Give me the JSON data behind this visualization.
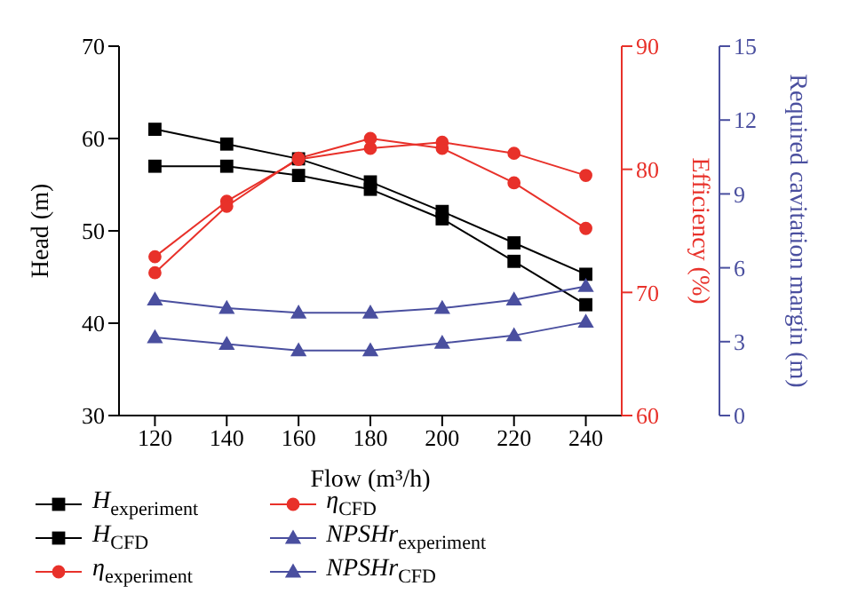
{
  "chart_data": {
    "type": "line",
    "xlabel": "Flow (m³/h)",
    "ylabel": "Head (m)",
    "y2label": "Efficiency (%)",
    "y3label": "Required cavitation margin (m)",
    "x": [
      120,
      140,
      160,
      180,
      200,
      220,
      240
    ],
    "xlim": [
      110,
      250
    ],
    "xticks": [
      120,
      140,
      160,
      180,
      200,
      220,
      240
    ],
    "ylim": [
      30,
      70
    ],
    "yticks": [
      30,
      40,
      50,
      60,
      70
    ],
    "y2lim": [
      60,
      90
    ],
    "y2ticks": [
      60,
      70,
      80,
      90
    ],
    "y3lim": [
      0,
      15
    ],
    "y3ticks": [
      0,
      3,
      6,
      9,
      12,
      15
    ],
    "grid": false,
    "legend": "bottom",
    "series": [
      {
        "name": "H$_{experiment}$",
        "color": "#000000",
        "marker": "square",
        "values": [
          61.0,
          59.4,
          57.8,
          55.3,
          52.1,
          48.7,
          45.3
        ]
      },
      {
        "name": "H$_{CFD}$",
        "color": "#000000",
        "marker": "square",
        "values": [
          57.0,
          57.0,
          56.0,
          54.5,
          51.3,
          46.7,
          42.0
        ]
      },
      {
        "name": "η$_{experiment}$",
        "color": "#e8312a",
        "marker": "circle",
        "axis": "y2",
        "values": [
          72.9,
          77.4,
          80.8,
          81.7,
          82.2,
          81.3,
          79.5
        ]
      },
      {
        "name": "η$_{CFD}$",
        "color": "#e8312a",
        "marker": "circle",
        "axis": "y2",
        "values": [
          71.6,
          77.0,
          80.9,
          82.5,
          81.7,
          78.9,
          75.2
        ]
      },
      {
        "name": "NPSHr$_{experiment}$",
        "color": "#4a4f9f",
        "marker": "triangle",
        "axis": "y3",
        "values": [
          4.7,
          4.36,
          4.17,
          4.17,
          4.36,
          4.7,
          5.25
        ]
      },
      {
        "name": "NPSHr$_{CFD}$",
        "color": "#4a4f9f",
        "marker": "triangle",
        "axis": "y3",
        "values": [
          3.17,
          2.9,
          2.64,
          2.64,
          2.94,
          3.25,
          3.8
        ]
      }
    ]
  }
}
